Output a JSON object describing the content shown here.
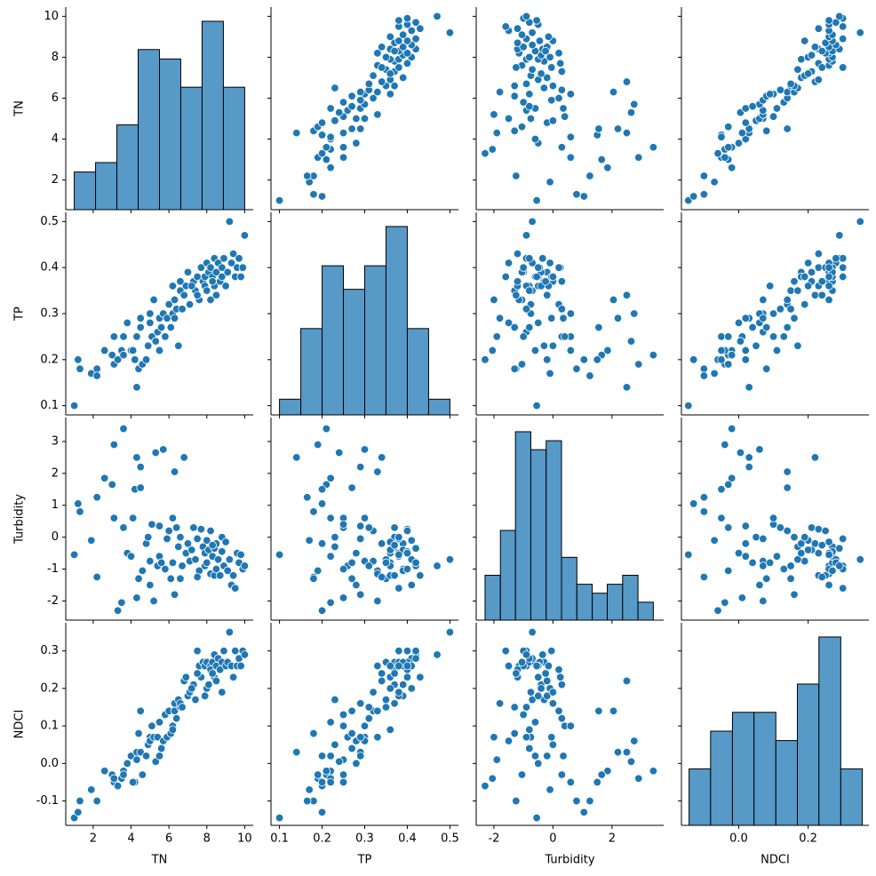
{
  "chart_data": {
    "type": "pairplot",
    "point_color": "#1f77b4",
    "hist_color": "#5799c7",
    "variables": [
      {
        "name": "TN",
        "lim": [
          0.55,
          10.45
        ],
        "ticks": [
          2,
          4,
          6,
          8,
          10
        ],
        "bins": [
          1,
          2.125,
          3.25,
          4.375,
          5.5,
          6.625,
          7.75,
          8.875,
          10
        ],
        "counts": [
          4,
          5,
          9,
          17,
          16,
          13,
          20,
          13
        ]
      },
      {
        "name": "TP",
        "lim": [
          0.08,
          0.52
        ],
        "ticks": [
          0.1,
          0.2,
          0.3,
          0.4,
          0.5
        ],
        "bins": [
          0.1,
          0.15,
          0.2,
          0.25,
          0.3,
          0.35,
          0.4,
          0.45,
          0.5
        ],
        "counts": [
          2,
          11,
          19,
          16,
          19,
          24,
          11,
          2
        ]
      },
      {
        "name": "Turbidity",
        "lim": [
          -2.6,
          3.75
        ],
        "ticks": [
          -2,
          -1,
          0,
          1,
          2,
          3
        ],
        "xticks": [
          -2,
          0,
          2
        ],
        "bins": [
          -2.3,
          -1.78,
          -1.27,
          -0.75,
          -0.23,
          0.29,
          0.81,
          1.33,
          1.84,
          2.36,
          2.88,
          3.4
        ],
        "counts": [
          5,
          10,
          21,
          19,
          20,
          7,
          4,
          3,
          4,
          5,
          2
        ]
      },
      {
        "name": "NDCI",
        "lim": [
          -0.165,
          0.375
        ],
        "ticks": [
          -0.1,
          {
            "value": 0,
            "label": "0.0"
          },
          0.1,
          0.2,
          0.3
        ],
        "xticks": [
          {
            "value": 0,
            "label": "0.0"
          },
          {
            "value": 0.2,
            "label": "0.2"
          }
        ],
        "bins": [
          -0.143,
          -0.081,
          -0.018,
          0.044,
          0.107,
          0.169,
          0.231,
          0.294,
          0.356
        ],
        "counts": [
          6,
          10,
          12,
          12,
          9,
          15,
          20,
          6
        ]
      }
    ],
    "rows": [
      [
        1.0,
        0.1,
        -0.55,
        -0.145
      ],
      [
        1.2,
        0.2,
        1.05,
        -0.13
      ],
      [
        1.3,
        0.18,
        0.8,
        -0.1
      ],
      [
        1.9,
        0.17,
        -0.1,
        -0.07
      ],
      [
        2.2,
        0.18,
        -1.25,
        -0.1
      ],
      [
        2.2,
        0.165,
        1.25,
        -0.1
      ],
      [
        2.6,
        0.22,
        1.85,
        -0.02
      ],
      [
        3.0,
        0.21,
        1.65,
        -0.03
      ],
      [
        3.1,
        0.25,
        0.6,
        -0.05
      ],
      [
        3.1,
        0.19,
        2.9,
        -0.04
      ],
      [
        3.3,
        0.2,
        -2.3,
        -0.06
      ],
      [
        3.5,
        0.22,
        -2.05,
        -0.04
      ],
      [
        3.6,
        0.21,
        3.4,
        -0.02
      ],
      [
        3.6,
        0.25,
        0.3,
        -0.03
      ],
      [
        3.8,
        0.28,
        -0.5,
        0.0
      ],
      [
        4.0,
        0.22,
        -0.6,
        0.02
      ],
      [
        4.2,
        0.2,
        1.5,
        -0.05
      ],
      [
        4.3,
        0.14,
        2.5,
        0.03
      ],
      [
        4.3,
        0.25,
        -1.9,
        0.01
      ],
      [
        4.4,
        0.18,
        -1.3,
        0.08
      ],
      [
        4.5,
        0.29,
        2.2,
        0.03
      ],
      [
        4.5,
        0.27,
        1.55,
        0.14
      ],
      [
        4.6,
        0.19,
        -1.05,
        -0.03
      ],
      [
        4.8,
        0.2,
        -0.2,
        0.02
      ],
      [
        4.9,
        0.23,
        0.0,
        0.05
      ],
      [
        5.0,
        0.3,
        -0.75,
        0.07
      ],
      [
        5.0,
        0.28,
        -1.5,
        0.06
      ],
      [
        5.1,
        0.25,
        0.4,
        0.1
      ],
      [
        5.2,
        0.33,
        -2.0,
        0.07
      ],
      [
        5.3,
        0.24,
        2.65,
        0.005
      ],
      [
        5.4,
        0.26,
        -0.9,
        0.07
      ],
      [
        5.5,
        0.29,
        0.35,
        0.02
      ],
      [
        5.5,
        0.22,
        -0.6,
        0.11
      ],
      [
        5.7,
        0.3,
        2.75,
        0.06
      ],
      [
        5.8,
        0.25,
        -1.0,
        0.13
      ],
      [
        5.9,
        0.29,
        -0.05,
        0.07
      ],
      [
        6.0,
        0.32,
        0.2,
        0.14
      ],
      [
        6.1,
        0.27,
        -1.3,
        0.08
      ],
      [
        6.2,
        0.3,
        0.6,
        0.1
      ],
      [
        6.2,
        0.36,
        -0.8,
        0.09
      ],
      [
        6.3,
        0.33,
        2.05,
        0.14
      ],
      [
        6.3,
        0.29,
        -1.8,
        0.16
      ],
      [
        6.4,
        0.31,
        0.3,
        0.12
      ],
      [
        6.5,
        0.23,
        -0.3,
        0.17
      ],
      [
        6.6,
        0.35,
        -1.3,
        0.15
      ],
      [
        6.6,
        0.37,
        0.0,
        0.16
      ],
      [
        6.8,
        0.34,
        2.5,
        0.22
      ],
      [
        6.9,
        0.36,
        -0.5,
        0.23
      ],
      [
        7.0,
        0.39,
        -0.2,
        0.18
      ],
      [
        7.1,
        0.32,
        -0.75,
        0.19
      ],
      [
        7.3,
        0.37,
        0.3,
        0.21
      ],
      [
        7.4,
        0.35,
        -0.7,
        0.17
      ],
      [
        7.5,
        0.38,
        -0.05,
        0.3
      ],
      [
        7.6,
        0.33,
        -1.05,
        0.26
      ],
      [
        7.7,
        0.4,
        0.25,
        0.23
      ],
      [
        7.8,
        0.37,
        -0.3,
        0.27
      ],
      [
        7.9,
        0.38,
        -0.5,
        0.18
      ],
      [
        7.9,
        0.36,
        -0.9,
        0.26
      ],
      [
        8.0,
        0.41,
        -0.1,
        0.2
      ],
      [
        8.0,
        0.35,
        -0.8,
        0.27
      ],
      [
        8.1,
        0.39,
        -0.4,
        0.21
      ],
      [
        8.2,
        0.33,
        -1.15,
        0.26
      ],
      [
        8.2,
        0.4,
        0.2,
        0.25
      ],
      [
        8.3,
        0.38,
        -0.6,
        0.27
      ],
      [
        8.4,
        0.36,
        -1.2,
        0.23
      ],
      [
        8.4,
        0.42,
        -0.35,
        0.29
      ],
      [
        8.5,
        0.39,
        -1.0,
        0.26
      ],
      [
        8.5,
        0.34,
        -0.2,
        0.22
      ],
      [
        8.6,
        0.41,
        -0.7,
        0.28
      ],
      [
        8.7,
        0.37,
        -1.2,
        0.25
      ],
      [
        8.8,
        0.4,
        -0.45,
        0.27
      ],
      [
        8.8,
        0.38,
        0.0,
        0.19
      ],
      [
        8.9,
        0.42,
        -0.9,
        0.3
      ],
      [
        9.0,
        0.36,
        -0.15,
        0.26
      ],
      [
        9.1,
        0.39,
        -1.05,
        0.27
      ],
      [
        9.2,
        0.5,
        -0.7,
        0.35
      ],
      [
        9.3,
        0.41,
        -1.5,
        0.26
      ],
      [
        9.4,
        0.43,
        -1.2,
        0.23
      ],
      [
        9.5,
        0.38,
        -1.6,
        0.3
      ],
      [
        9.6,
        0.4,
        -0.5,
        0.26
      ],
      [
        9.7,
        0.42,
        -0.8,
        0.28
      ],
      [
        9.8,
        0.38,
        -0.55,
        0.26
      ],
      [
        9.9,
        0.4,
        -1.0,
        0.3
      ],
      [
        10.0,
        0.47,
        -0.9,
        0.29
      ],
      [
        7.2,
        0.36,
        -0.4,
        0.2
      ],
      [
        5.6,
        0.27,
        -0.8,
        0.04
      ],
      [
        4.1,
        0.22,
        0.6,
        -0.05
      ],
      [
        7.5,
        0.34,
        -1.25,
        0.24
      ],
      [
        8.3,
        0.37,
        -0.25,
        0.24
      ],
      [
        6.7,
        0.31,
        -0.9,
        0.15
      ]
    ]
  }
}
